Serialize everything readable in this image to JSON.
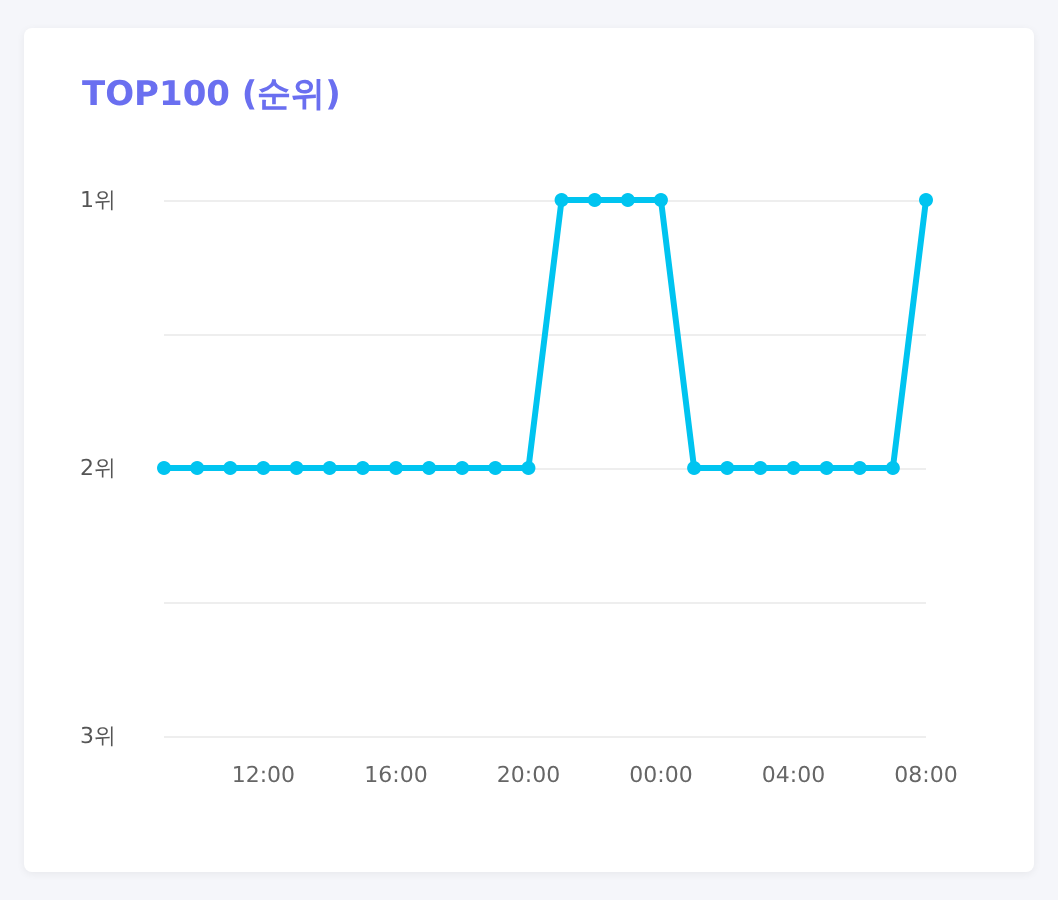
{
  "chart_data": {
    "type": "line",
    "title": "TOP100 (순위)",
    "x": [
      "--01-01T09:00",
      "--01-01T10:00",
      "--01-01T11:00",
      "--01-01T12:00",
      "--01-01T13:00",
      "--01-01T14:00",
      "--01-01T15:00",
      "--01-01T16:00",
      "--01-01T17:00",
      "--01-01T18:00",
      "--01-01T19:00",
      "--01-01T20:00",
      "--01-01T21:00",
      "--01-01T22:00",
      "--01-01T23:00",
      "--01-02T00:00",
      "--01-02T01:00",
      "--01-02T02:00",
      "--01-02T03:00",
      "--01-02T04:00",
      "--01-02T05:00",
      "--01-02T06:00",
      "--01-02T07:00",
      "--01-02T08:00"
    ],
    "series": [
      {
        "color": "#00c4f0",
        "values": [
          2,
          2,
          2,
          2,
          2,
          2,
          2,
          2,
          2,
          2,
          2,
          2,
          1,
          1,
          1,
          1,
          2,
          2,
          2,
          2,
          2,
          2,
          2,
          1
        ]
      }
    ],
    "xlim": [
      "--01-01T09:00",
      "--01-02T08:00"
    ],
    "xticks": [
      {
        "value": "--01-01T12:00",
        "label": "12:00"
      },
      {
        "value": "--01-01T16:00",
        "label": "16:00"
      },
      {
        "value": "--01-01T20:00",
        "label": "20:00"
      },
      {
        "value": "--01-02T00:00",
        "label": "00:00"
      },
      {
        "value": "--01-02T04:00",
        "label": "04:00"
      },
      {
        "value": "--01-02T08:00",
        "label": "08:00"
      }
    ],
    "ylim": [
      3,
      1
    ],
    "yticks": [
      {
        "value": 1,
        "label": "1위"
      },
      {
        "value": 1.5,
        "label": null
      },
      {
        "value": 2,
        "label": "2위"
      },
      {
        "value": 2.5,
        "label": null
      },
      {
        "value": 3,
        "label": "3위"
      }
    ],
    "grid": "y",
    "marker": "circle",
    "line_style": "solid"
  }
}
